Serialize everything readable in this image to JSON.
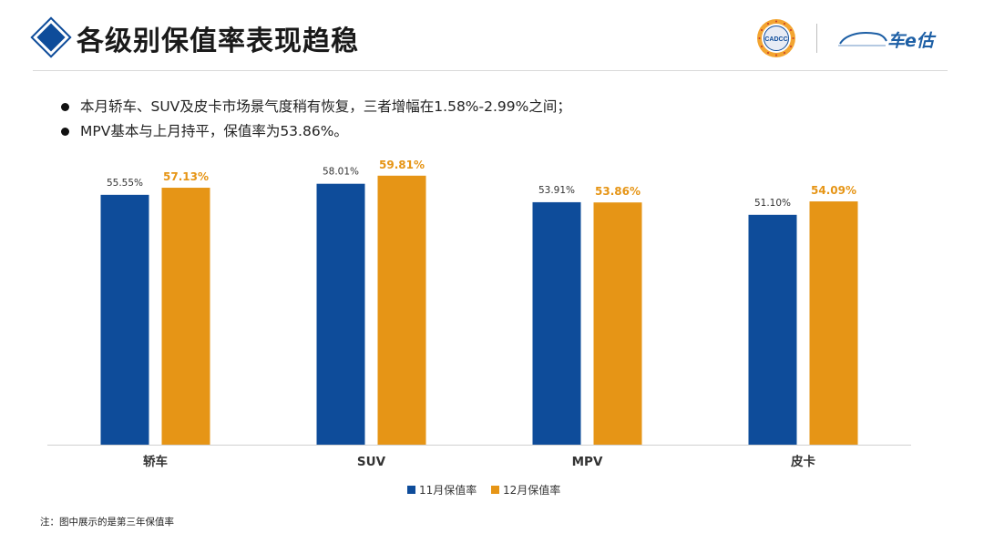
{
  "header": {
    "title": "各级别保值率表现趋稳",
    "seal_text": "CADCC",
    "brand_text": "车e估"
  },
  "bullets": [
    "本月轿车、SUV及皮卡市场景气度稍有恢复，三者增幅在1.58%-2.99%之间；",
    "MPV基本与上月持平，保值率为53.86%。"
  ],
  "footnote": "注：图中展示的是第三年保值率",
  "chart_data": {
    "type": "bar",
    "title": "",
    "xlabel": "",
    "ylabel": "",
    "ylim": [
      0,
      62
    ],
    "grid": false,
    "legend": "bottom-center",
    "categories": [
      "轿车",
      "SUV",
      "MPV",
      "皮卡"
    ],
    "series": [
      {
        "name": "11月保值率",
        "color": "#0e4c9a",
        "values": [
          55.55,
          58.01,
          53.91,
          51.1
        ],
        "labels": [
          "55.55%",
          "58.01%",
          "53.91%",
          "51.10%"
        ]
      },
      {
        "name": "12月保值率",
        "color": "#e69516",
        "values": [
          57.13,
          59.81,
          53.86,
          54.09
        ],
        "labels": [
          "57.13%",
          "59.81%",
          "53.86%",
          "54.09%"
        ]
      }
    ]
  }
}
